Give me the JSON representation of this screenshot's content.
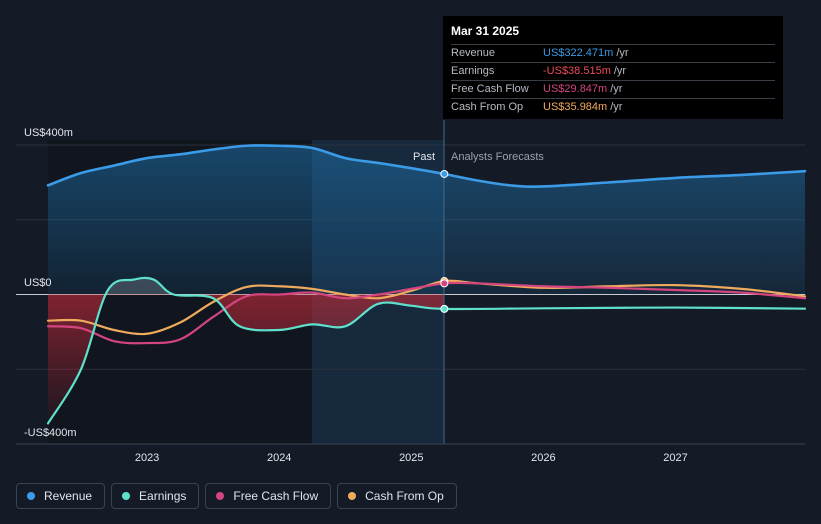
{
  "tooltip": {
    "date": "Mar 31 2025",
    "rows": [
      {
        "label": "Revenue",
        "value": "US$322.471m",
        "unit": "/yr",
        "color": "#3b9be6"
      },
      {
        "label": "Earnings",
        "value": "-US$38.515m",
        "unit": "/yr",
        "color": "#ef4b5a"
      },
      {
        "label": "Free Cash Flow",
        "value": "US$29.847m",
        "unit": "/yr",
        "color": "#d4457f"
      },
      {
        "label": "Cash From Op",
        "value": "US$35.984m",
        "unit": "/yr",
        "color": "#efaa5e"
      }
    ]
  },
  "legend": [
    {
      "label": "Revenue",
      "color": "#3b9be6"
    },
    {
      "label": "Earnings",
      "color": "#5fe0cb"
    },
    {
      "label": "Free Cash Flow",
      "color": "#d4457f"
    },
    {
      "label": "Cash From Op",
      "color": "#efaa5e"
    }
  ],
  "chart_data": {
    "type": "line",
    "title": "",
    "xlabel": "",
    "ylabel": "",
    "xlim": [
      2022.25,
      2027.98
    ],
    "ylim": [
      -400,
      400
    ],
    "y_tick_labels": [
      {
        "value": 400,
        "label": "US$400m"
      },
      {
        "value": 0,
        "label": "US$0"
      },
      {
        "value": -400,
        "label": "-US$400m"
      }
    ],
    "x_tick_labels": [
      {
        "value": 2023,
        "label": "2023"
      },
      {
        "value": 2024,
        "label": "2024"
      },
      {
        "value": 2025,
        "label": "2025"
      },
      {
        "value": 2026,
        "label": "2026"
      },
      {
        "value": 2027,
        "label": "2027"
      }
    ],
    "past_label": "Past",
    "forecast_label": "Analysts Forecasts",
    "divider_x": 2025.25,
    "grid": true,
    "series": [
      {
        "name": "Revenue",
        "color": "#3b9be6",
        "points": [
          [
            2022.25,
            292
          ],
          [
            2022.5,
            325
          ],
          [
            2022.75,
            345
          ],
          [
            2023.0,
            365
          ],
          [
            2023.25,
            375
          ],
          [
            2023.5,
            388
          ],
          [
            2023.75,
            398
          ],
          [
            2024.0,
            398
          ],
          [
            2024.25,
            392
          ],
          [
            2024.5,
            365
          ],
          [
            2024.75,
            352
          ],
          [
            2025.0,
            338
          ],
          [
            2025.25,
            322.5
          ],
          [
            2025.5,
            305
          ],
          [
            2025.75,
            292
          ],
          [
            2026.0,
            289
          ],
          [
            2026.5,
            300
          ],
          [
            2027.0,
            312
          ],
          [
            2027.5,
            320
          ],
          [
            2027.98,
            330
          ]
        ]
      },
      {
        "name": "Earnings",
        "color": "#5fe0cb",
        "points": [
          [
            2022.25,
            -345
          ],
          [
            2022.5,
            -200
          ],
          [
            2022.7,
            10
          ],
          [
            2022.9,
            40
          ],
          [
            2023.05,
            40
          ],
          [
            2023.2,
            0
          ],
          [
            2023.5,
            -10
          ],
          [
            2023.7,
            -85
          ],
          [
            2024.0,
            -95
          ],
          [
            2024.25,
            -80
          ],
          [
            2024.5,
            -85
          ],
          [
            2024.75,
            -25
          ],
          [
            2025.0,
            -30
          ],
          [
            2025.25,
            -38.5
          ],
          [
            2026.0,
            -37
          ],
          [
            2027.0,
            -35
          ],
          [
            2027.98,
            -38
          ]
        ]
      },
      {
        "name": "Free Cash Flow",
        "color": "#d4457f",
        "points": [
          [
            2022.25,
            -85
          ],
          [
            2022.5,
            -90
          ],
          [
            2022.75,
            -125
          ],
          [
            2023.0,
            -130
          ],
          [
            2023.25,
            -120
          ],
          [
            2023.5,
            -60
          ],
          [
            2023.75,
            -5
          ],
          [
            2024.0,
            0
          ],
          [
            2024.25,
            5
          ],
          [
            2024.5,
            -10
          ],
          [
            2024.75,
            0
          ],
          [
            2025.0,
            15
          ],
          [
            2025.25,
            29.8
          ],
          [
            2025.5,
            30
          ],
          [
            2026.0,
            22
          ],
          [
            2026.5,
            18
          ],
          [
            2027.0,
            12
          ],
          [
            2027.5,
            5
          ],
          [
            2027.98,
            -10
          ]
        ]
      },
      {
        "name": "Cash From Op",
        "color": "#efaa5e",
        "points": [
          [
            2022.25,
            -70
          ],
          [
            2022.5,
            -70
          ],
          [
            2022.75,
            -95
          ],
          [
            2023.0,
            -105
          ],
          [
            2023.25,
            -75
          ],
          [
            2023.5,
            -20
          ],
          [
            2023.75,
            20
          ],
          [
            2024.0,
            22
          ],
          [
            2024.25,
            15
          ],
          [
            2024.5,
            0
          ],
          [
            2024.75,
            -10
          ],
          [
            2025.0,
            10
          ],
          [
            2025.25,
            36
          ],
          [
            2025.5,
            30
          ],
          [
            2026.0,
            18
          ],
          [
            2026.5,
            22
          ],
          [
            2027.0,
            25
          ],
          [
            2027.5,
            15
          ],
          [
            2027.98,
            -5
          ]
        ]
      }
    ]
  }
}
